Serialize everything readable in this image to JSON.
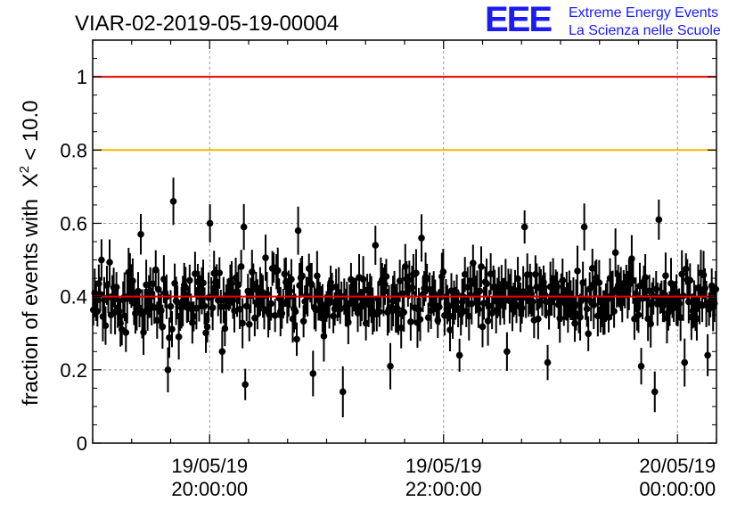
{
  "chart_data": {
    "type": "scatter",
    "title": "VIAR-02-2019-05-19-00004",
    "ylabel": "fraction of events with",
    "ylabel_math": {
      "symbol": "X",
      "sup": "2",
      "rest": "< 10.0"
    },
    "ylim": [
      0,
      1.1
    ],
    "xlim_minutes_after_2019_05_19_19_00": [
      0,
      320
    ],
    "yticks": [
      0,
      0.2,
      0.4,
      0.6,
      0.8,
      1
    ],
    "ytick_labels": [
      "0",
      "0.2",
      "0.4",
      "0.6",
      "0.8",
      "1"
    ],
    "xticks": [
      {
        "date": "19/05/19",
        "time": "20:00:00",
        "minute": 60
      },
      {
        "date": "19/05/19",
        "time": "22:00:00",
        "minute": 180
      },
      {
        "date": "20/05/19",
        "time": "00:00:00",
        "minute": 300
      }
    ],
    "grid": true,
    "reference_lines": [
      {
        "y": 1.0,
        "color": "#e60000"
      },
      {
        "y": 0.8,
        "color": "#f5b800"
      },
      {
        "y": 0.4,
        "color": "#e60000"
      }
    ],
    "marker_color": "#000000",
    "n_points": 460,
    "mean": 0.4,
    "points_sample": [
      {
        "x": 1,
        "y": 0.41
      },
      {
        "x": 4,
        "y": 0.5
      },
      {
        "x": 13,
        "y": 0.36
      },
      {
        "x": 24,
        "y": 0.57
      },
      {
        "x": 31,
        "y": 0.37
      },
      {
        "x": 38,
        "y": 0.2
      },
      {
        "x": 41,
        "y": 0.66
      },
      {
        "x": 44,
        "y": 0.29
      },
      {
        "x": 60,
        "y": 0.6
      },
      {
        "x": 66,
        "y": 0.25
      },
      {
        "x": 77,
        "y": 0.59
      },
      {
        "x": 78,
        "y": 0.16
      },
      {
        "x": 105,
        "y": 0.58
      },
      {
        "x": 113,
        "y": 0.19
      },
      {
        "x": 128,
        "y": 0.14
      },
      {
        "x": 145,
        "y": 0.54
      },
      {
        "x": 152,
        "y": 0.21
      },
      {
        "x": 168,
        "y": 0.56
      },
      {
        "x": 188,
        "y": 0.24
      },
      {
        "x": 212,
        "y": 0.25
      },
      {
        "x": 221,
        "y": 0.59
      },
      {
        "x": 233,
        "y": 0.22
      },
      {
        "x": 252,
        "y": 0.59
      },
      {
        "x": 268,
        "y": 0.52
      },
      {
        "x": 281,
        "y": 0.21
      },
      {
        "x": 288,
        "y": 0.14
      },
      {
        "x": 290,
        "y": 0.61
      },
      {
        "x": 303,
        "y": 0.22
      },
      {
        "x": 315,
        "y": 0.24
      },
      {
        "x": 319,
        "y": 0.42
      }
    ],
    "error_bar_half_width_approx": 0.05
  },
  "logo": {
    "mark": "EEE",
    "line1": "Extreme Energy Events",
    "line2": "La Scienza nelle Scuole",
    "color": "#1a1aff"
  }
}
